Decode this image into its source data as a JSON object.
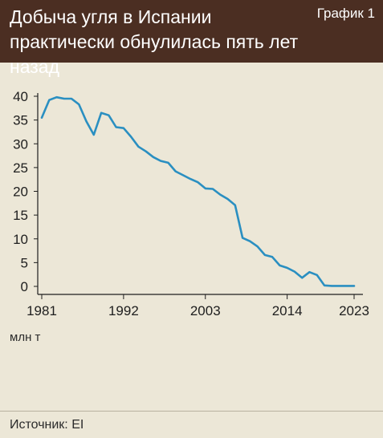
{
  "header": {
    "title": "Добыча угля в Испании практически обнулилась пять лет назад",
    "badge": "График 1"
  },
  "unit_label": "млн т",
  "source": "Источник: EI",
  "colors": {
    "header_bg": "#4b2e22",
    "line": "#2a8fc1",
    "background": "#ece7d7"
  },
  "chart_data": {
    "type": "line",
    "title": "Добыча угля в Испании практически обнулилась пять лет назад",
    "ylabel": "млн т",
    "ylim": [
      0,
      40
    ],
    "xlim": [
      1981,
      2023
    ],
    "y_ticks": [
      0,
      5,
      10,
      15,
      20,
      25,
      30,
      35,
      40
    ],
    "x_ticks": [
      1981,
      1992,
      2003,
      2014,
      2023
    ],
    "grid": false,
    "series": [
      {
        "x": [
          1981,
          1982,
          1983,
          1984,
          1985,
          1986,
          1987,
          1988,
          1989,
          1990,
          1991,
          1992,
          1993,
          1994,
          1995,
          1996,
          1997,
          1998,
          1999,
          2000,
          2001,
          2002,
          2003,
          2004,
          2005,
          2006,
          2007,
          2008,
          2009,
          2010,
          2011,
          2012,
          2013,
          2014,
          2015,
          2016,
          2017,
          2018,
          2019,
          2020,
          2021,
          2022,
          2023
        ],
        "y": [
          35.5,
          39.2,
          39.8,
          39.5,
          39.5,
          38.3,
          34.7,
          31.9,
          36.5,
          36.0,
          33.5,
          33.3,
          31.5,
          29.4,
          28.4,
          27.2,
          26.4,
          26.0,
          24.2,
          23.4,
          22.6,
          21.9,
          20.6,
          20.5,
          19.3,
          18.4,
          17.1,
          10.2,
          9.5,
          8.4,
          6.6,
          6.2,
          4.4,
          3.9,
          3.1,
          1.8,
          3.0,
          2.4,
          0.2,
          0.1,
          0.1,
          0.1,
          0.1
        ]
      }
    ]
  }
}
